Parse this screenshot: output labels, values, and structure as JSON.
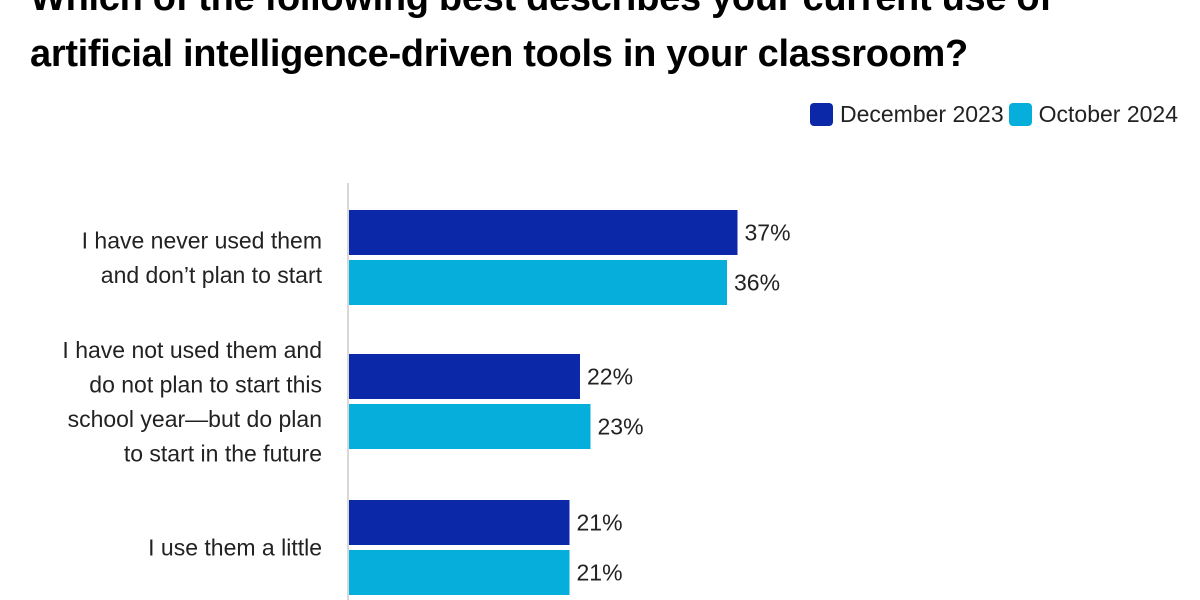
{
  "chart_data": {
    "type": "bar",
    "orientation": "horizontal",
    "title_lines": [
      "Which of the following best describes your current use of",
      "artificial intelligence-driven tools in your classroom?"
    ],
    "categories": [
      [
        "I have never used them",
        "and don’t plan to start"
      ],
      [
        "I have not used them and",
        "do not plan to start this",
        "school year—but do plan",
        "to start in the future"
      ],
      [
        "I use them a little"
      ]
    ],
    "series": [
      {
        "name": "December 2023",
        "color": "#0a28a8",
        "values": [
          37,
          22,
          21
        ]
      },
      {
        "name": "October 2024",
        "color": "#06aedb",
        "values": [
          36,
          23,
          21
        ]
      }
    ],
    "value_suffix": "%",
    "xlim": [
      0,
      100
    ],
    "legend_position": "top-right"
  }
}
